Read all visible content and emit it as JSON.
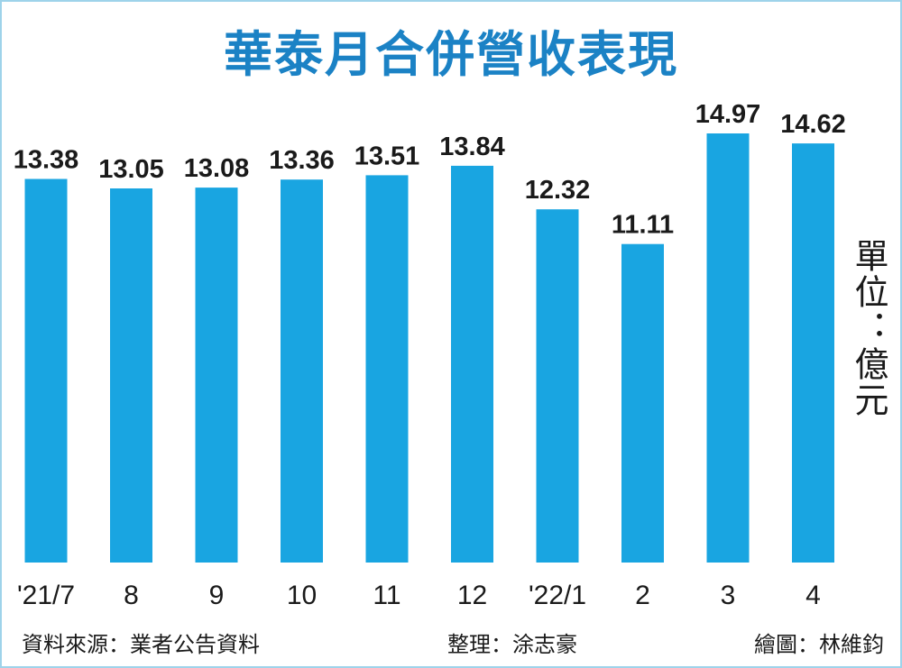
{
  "title": "華泰月合併營收表現",
  "unit_label": "單位：億元",
  "footer": {
    "source": "資料來源：業者公告資料",
    "editor": "整理：涂志豪",
    "graphic": "繪圖：林維鈞"
  },
  "colors": {
    "bar": "#19a5e1",
    "title": "#1b82c5",
    "text": "#1a1a1a",
    "border": "#9ed3ea"
  },
  "chart_data": {
    "type": "bar",
    "categories": [
      "'21/7",
      "8",
      "9",
      "10",
      "11",
      "12",
      "'22/1",
      "2",
      "3",
      "4"
    ],
    "values": [
      13.38,
      13.05,
      13.08,
      13.36,
      13.51,
      13.84,
      12.32,
      11.11,
      14.97,
      14.62
    ],
    "value_labels": [
      "13.38",
      "13.05",
      "13.08",
      "13.36",
      "13.51",
      "13.84",
      "12.32",
      "11.11",
      "14.97",
      "14.62"
    ],
    "title": "華泰月合併營收表現",
    "ylabel": "單位：億元",
    "xlabel": "",
    "ylim": [
      0,
      15
    ],
    "grid": false,
    "legend": "none"
  }
}
